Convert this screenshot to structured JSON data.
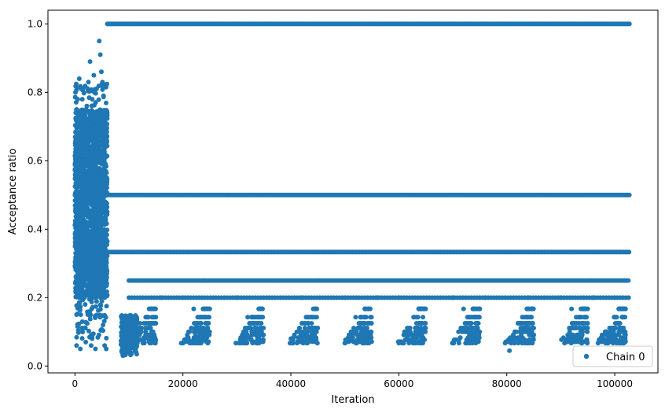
{
  "chart_data": {
    "type": "scatter",
    "title": "",
    "xlabel": "Iteration",
    "ylabel": "Acceptance ratio",
    "xlim": [
      -5000,
      108000
    ],
    "ylim": [
      -0.02,
      1.04
    ],
    "x_ticks": [
      0,
      20000,
      40000,
      60000,
      80000,
      100000
    ],
    "x_tick_labels": [
      "0",
      "20000",
      "40000",
      "60000",
      "80000",
      "100000"
    ],
    "y_ticks": [
      0.0,
      0.2,
      0.4,
      0.6,
      0.8,
      1.0
    ],
    "y_tick_labels": [
      "0.0",
      "0.2",
      "0.4",
      "0.6",
      "0.8",
      "1.0"
    ],
    "grid": false,
    "legend": {
      "position": "bottom-right",
      "entries": [
        "Chain 0"
      ]
    },
    "series": [
      {
        "name": "Chain 0",
        "color": "#1f77b4",
        "marker": "circle",
        "points": [
          [
            100,
            0.8
          ],
          [
            300,
            0.06
          ],
          [
            500,
            0.78
          ],
          [
            800,
            0.84
          ],
          [
            1000,
            0.05
          ],
          [
            1200,
            0.81
          ],
          [
            1500,
            0.72
          ],
          [
            1800,
            0.65
          ],
          [
            2000,
            0.07
          ],
          [
            2200,
            0.76
          ],
          [
            2500,
            0.83
          ],
          [
            2800,
            0.89
          ],
          [
            3000,
            0.06
          ],
          [
            3200,
            0.78
          ],
          [
            3500,
            0.85
          ],
          [
            3800,
            0.05
          ],
          [
            4000,
            0.81
          ],
          [
            4200,
            0.73
          ],
          [
            4500,
            0.95
          ],
          [
            4700,
            0.91
          ],
          [
            4900,
            0.86
          ],
          [
            5100,
            0.83
          ],
          [
            5300,
            0.79
          ],
          [
            5500,
            0.06
          ],
          [
            5800,
            0.05
          ],
          [
            600,
            0.55
          ],
          [
            1600,
            0.58
          ],
          [
            2600,
            0.62
          ],
          [
            3600,
            0.57
          ],
          [
            4800,
            0.6
          ],
          [
            700,
            0.4
          ],
          [
            1700,
            0.35
          ],
          [
            2700,
            0.3
          ],
          [
            3700,
            0.38
          ],
          [
            4900,
            0.28
          ],
          [
            900,
            0.22
          ],
          [
            1900,
            0.18
          ],
          [
            2900,
            0.15
          ],
          [
            3900,
            0.2
          ],
          [
            5200,
            0.12
          ],
          [
            15000,
            0.125
          ],
          [
            16000,
            0.2
          ],
          [
            20000,
            0.2
          ],
          [
            22000,
            0.167
          ],
          [
            24000,
            0.25
          ],
          [
            30000,
            0.2
          ],
          [
            32000,
            0.143
          ],
          [
            36000,
            0.2
          ],
          [
            40000,
            0.08
          ],
          [
            42000,
            0.2
          ],
          [
            50000,
            0.2
          ],
          [
            52000,
            0.143
          ],
          [
            56000,
            0.2
          ],
          [
            60000,
            0.2
          ],
          [
            64000,
            0.09
          ],
          [
            70000,
            0.2
          ],
          [
            72000,
            0.167
          ],
          [
            76000,
            0.2
          ],
          [
            80500,
            0.045
          ],
          [
            84000,
            0.2
          ],
          [
            90000,
            0.2
          ],
          [
            92000,
            0.167
          ],
          [
            96000,
            0.2
          ],
          [
            100000,
            0.2
          ],
          [
            102000,
            0.04
          ]
        ]
      }
    ]
  }
}
